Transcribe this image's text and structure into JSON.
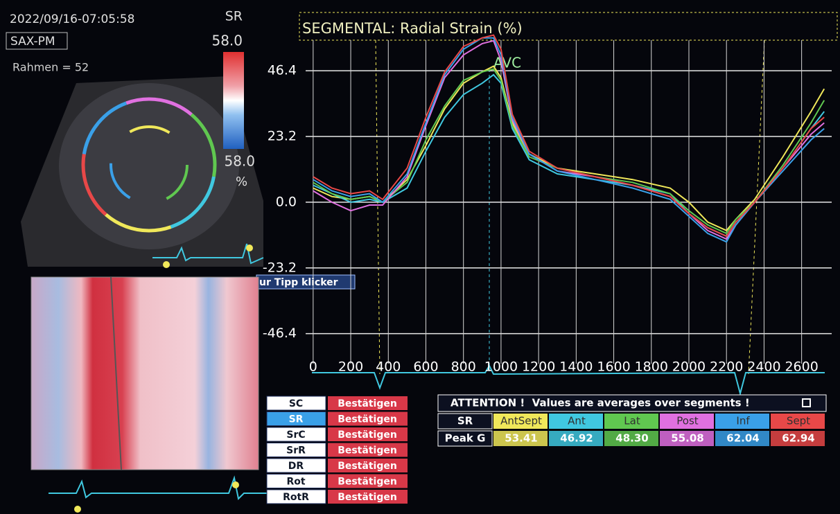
{
  "header": {
    "timestamp": "2022/09/16-07:05:58",
    "mode": "SR",
    "view": "SAX-PM",
    "scale_max": "58.0",
    "frame": "Rahmen = 52",
    "scale_min": "58.0",
    "unit": "%",
    "tooltip": "ur Tipp klicker"
  },
  "chart_data": {
    "type": "line",
    "title": "SEGMENTAL: Radial Strain (%)",
    "annotation": "AVC",
    "x": [
      0,
      100,
      200,
      300,
      370,
      500,
      600,
      700,
      800,
      900,
      960,
      1000,
      1060,
      1150,
      1300,
      1500,
      1700,
      1900,
      2000,
      2100,
      2200,
      2250,
      2350,
      2500,
      2650,
      2720
    ],
    "series": [
      {
        "name": "AntSept",
        "color": "#f0e85a",
        "values": [
          5,
          2,
          1,
          2,
          0,
          8,
          20,
          33,
          42,
          46,
          48,
          44,
          28,
          17,
          12,
          10,
          8,
          5,
          0,
          -7,
          -10,
          -6,
          1,
          16,
          32,
          40
        ]
      },
      {
        "name": "Ant",
        "color": "#40c8e0",
        "values": [
          6,
          3,
          0,
          1,
          0,
          5,
          18,
          30,
          38,
          42,
          45,
          42,
          26,
          15,
          10,
          8,
          6,
          3,
          -4,
          -9,
          -12,
          -7,
          0,
          12,
          26,
          32
        ]
      },
      {
        "name": "Lat",
        "color": "#60c850",
        "values": [
          7,
          3,
          1,
          2,
          0,
          7,
          22,
          34,
          43,
          46,
          47,
          43,
          27,
          16,
          12,
          9,
          7,
          3,
          -3,
          -8,
          -11,
          -6,
          0,
          13,
          28,
          36
        ]
      },
      {
        "name": "Post",
        "color": "#e070e0",
        "values": [
          4,
          0,
          -3,
          -1,
          -1,
          9,
          27,
          44,
          52,
          56,
          57,
          50,
          29,
          17,
          11,
          9,
          6,
          2,
          -4,
          -10,
          -13,
          -8,
          0,
          12,
          24,
          28
        ]
      },
      {
        "name": "Inf",
        "color": "#3aa0e8",
        "values": [
          8,
          4,
          2,
          3,
          0,
          10,
          28,
          45,
          54,
          58,
          58,
          52,
          30,
          17,
          11,
          8,
          5,
          1,
          -5,
          -11,
          -14,
          -8,
          0,
          11,
          22,
          26
        ]
      },
      {
        "name": "Sept",
        "color": "#e84848",
        "values": [
          9,
          5,
          3,
          4,
          1,
          12,
          30,
          46,
          55,
          58,
          59,
          54,
          31,
          18,
          12,
          9,
          6,
          2,
          -4,
          -9,
          -12,
          -7,
          0,
          12,
          26,
          30
        ]
      }
    ],
    "xlim": [
      -40,
      2760
    ],
    "ylim": [
      -57,
      66
    ],
    "xticks": [
      0,
      200,
      400,
      600,
      800,
      1000,
      1200,
      1400,
      1600,
      1800,
      2000,
      2200,
      2400,
      2600
    ],
    "yticks": [
      46.4,
      23.2,
      {
        "value": 0,
        "label": "0.0"
      },
      -23.2,
      -46.4
    ],
    "grid": true
  },
  "buttons": {
    "labels": [
      "SC",
      "SR",
      "SrC",
      "SrR",
      "DR",
      "Rot",
      "RotR"
    ],
    "action": "Bestätigen"
  },
  "table": {
    "title": "ATTENTION !  Values are averages over segments !",
    "row_labels": [
      "SR",
      "Peak G"
    ],
    "values": [
      "53.41",
      "46.92",
      "48.30",
      "55.08",
      "62.04",
      "62.94"
    ]
  }
}
